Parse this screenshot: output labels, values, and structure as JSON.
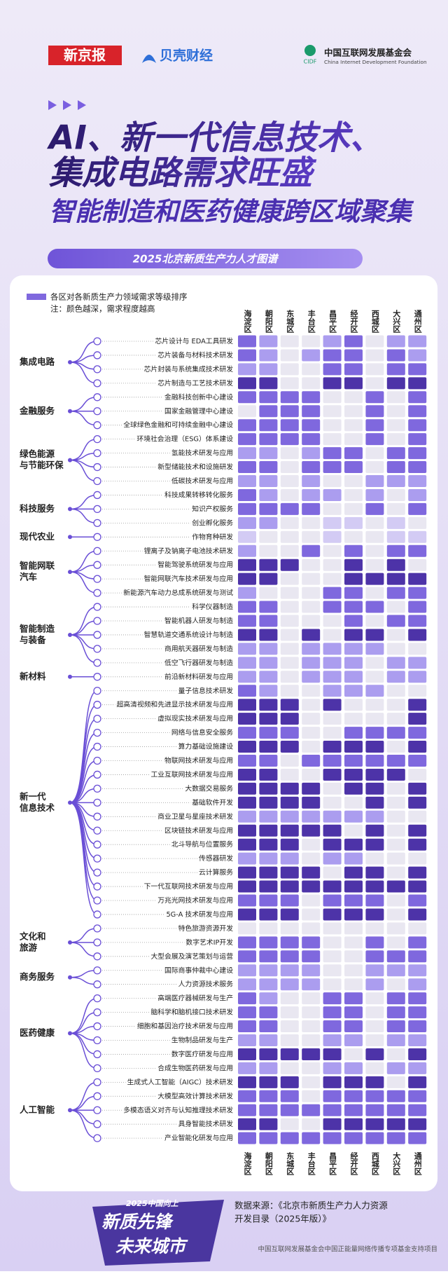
{
  "header": {
    "logo_1": "新京报",
    "logo_2": "贝壳财经",
    "logo_3_abbr": "CIDF",
    "logo_3_name": "中国互联网发展基金会",
    "logo_3_en": "China Internet Development Foundation"
  },
  "title_lines": [
    "AI、新一代信息技术、",
    "集成电路需求旺盛",
    "智能制造和医药健康跨区域聚集"
  ],
  "banner": "2025北京新质生产力人才图谱",
  "legend": {
    "title": "各区对各新质生产力领域需求等级排序",
    "note": "注：颜色越深，需求程度越高"
  },
  "level_colors": [
    "#e9e7f1",
    "#d3cbf4",
    "#ab9def",
    "#7f68de",
    "#4d33a8"
  ],
  "columns": [
    "海淀区",
    "朝阳区",
    "东城区",
    "丰台区",
    "昌平区",
    "经开区",
    "西城区",
    "大兴区",
    "通州区"
  ],
  "groups": [
    {
      "name_lines": [
        "集成电路"
      ],
      "rows": [
        {
          "label": "芯片设计与 EDA工具研发",
          "levels": [
            3,
            2,
            0,
            0,
            2,
            3,
            0,
            2,
            2
          ]
        },
        {
          "label": "芯片装备与材料技术研发",
          "levels": [
            3,
            2,
            0,
            2,
            3,
            3,
            0,
            3,
            2
          ]
        },
        {
          "label": "芯片封装与系统集成技术研发",
          "levels": [
            2,
            2,
            0,
            0,
            3,
            3,
            0,
            3,
            3
          ]
        },
        {
          "label": "芯片制造与工艺技术研发",
          "levels": [
            4,
            4,
            0,
            0,
            4,
            4,
            0,
            4,
            4
          ]
        }
      ]
    },
    {
      "name_lines": [
        "金融服务"
      ],
      "rows": [
        {
          "label": "金融科技创新中心建设",
          "levels": [
            3,
            3,
            3,
            3,
            0,
            0,
            3,
            0,
            3
          ]
        },
        {
          "label": "国家金融管理中心建设",
          "levels": [
            0,
            3,
            3,
            3,
            0,
            0,
            3,
            0,
            3
          ]
        },
        {
          "label": "全球绿色金融和可持续金融中心建设",
          "levels": [
            3,
            3,
            3,
            3,
            0,
            0,
            3,
            0,
            3
          ]
        }
      ]
    },
    {
      "name_lines": [
        "绿色能源",
        "与节能环保"
      ],
      "rows": [
        {
          "label": "环境社会治理（ESG）体系建设",
          "levels": [
            3,
            3,
            3,
            3,
            0,
            0,
            3,
            0,
            3
          ]
        },
        {
          "label": "氢能技术研发与应用",
          "levels": [
            2,
            2,
            0,
            2,
            3,
            3,
            0,
            3,
            3
          ]
        },
        {
          "label": "新型储能技术和设施研发",
          "levels": [
            3,
            3,
            0,
            3,
            3,
            3,
            0,
            3,
            3
          ]
        },
        {
          "label": "低碳技术研发与应用",
          "levels": [
            2,
            2,
            0,
            2,
            0,
            0,
            2,
            2,
            2
          ]
        }
      ]
    },
    {
      "name_lines": [
        "科技服务"
      ],
      "rows": [
        {
          "label": "科技成果转移转化服务",
          "levels": [
            3,
            2,
            0,
            2,
            2,
            0,
            2,
            0,
            2
          ]
        },
        {
          "label": "知识产权服务",
          "levels": [
            3,
            3,
            3,
            3,
            0,
            0,
            3,
            0,
            3
          ]
        },
        {
          "label": "创业孵化服务",
          "levels": [
            2,
            2,
            0,
            0,
            1,
            1,
            0,
            1,
            0
          ]
        }
      ]
    },
    {
      "name_lines": [
        "现代农业"
      ],
      "rows": [
        {
          "label": "作物育种研发",
          "levels": [
            1,
            0,
            0,
            0,
            1,
            0,
            0,
            1,
            1
          ]
        }
      ]
    },
    {
      "name_lines": [
        "智能网联",
        "汽车"
      ],
      "rows": [
        {
          "label": "锂离子及钠离子电池技术研发",
          "levels": [
            2,
            0,
            0,
            3,
            0,
            3,
            0,
            3,
            3
          ]
        },
        {
          "label": "智能驾驶系统研发与应用",
          "levels": [
            4,
            4,
            4,
            0,
            0,
            4,
            0,
            4,
            0
          ]
        },
        {
          "label": "智能网联汽车技术研发与应用",
          "levels": [
            4,
            4,
            0,
            0,
            0,
            4,
            4,
            4,
            4
          ]
        },
        {
          "label": "新能源汽车动力总成系统研发与测试",
          "levels": [
            2,
            0,
            0,
            0,
            3,
            3,
            0,
            3,
            3
          ]
        }
      ]
    },
    {
      "name_lines": [
        "智能制造",
        "与装备"
      ],
      "rows": [
        {
          "label": "科学仪器制造",
          "levels": [
            3,
            3,
            0,
            0,
            3,
            3,
            3,
            0,
            3
          ]
        },
        {
          "label": "智能机器人研发与制造",
          "levels": [
            3,
            3,
            0,
            0,
            0,
            3,
            0,
            3,
            3
          ]
        },
        {
          "label": "智慧轨道交通系统设计与制造",
          "levels": [
            4,
            4,
            0,
            4,
            0,
            4,
            4,
            0,
            4
          ]
        },
        {
          "label": "商用航天器研发与制造",
          "levels": [
            2,
            2,
            0,
            2,
            2,
            2,
            2,
            0,
            0
          ]
        },
        {
          "label": "低空飞行器研发与制造",
          "levels": [
            2,
            2,
            0,
            2,
            2,
            2,
            0,
            2,
            2
          ]
        }
      ]
    },
    {
      "name_lines": [
        "新材料"
      ],
      "rows": [
        {
          "label": "前沿新材料研发与应用",
          "levels": [
            2,
            2,
            0,
            2,
            2,
            2,
            0,
            2,
            2
          ]
        }
      ]
    },
    {
      "name_lines": [
        "新一代",
        "信息技术"
      ],
      "rows": [
        {
          "label": "量子信息技术研发",
          "levels": [
            3,
            2,
            0,
            0,
            2,
            2,
            2,
            0,
            0
          ]
        },
        {
          "label": "超高清视频和先进显示技术研发与应用",
          "levels": [
            4,
            4,
            4,
            0,
            4,
            0,
            0,
            0,
            4
          ]
        },
        {
          "label": "虚拟现实技术研发与应用",
          "levels": [
            4,
            4,
            4,
            0,
            0,
            0,
            0,
            0,
            4
          ]
        },
        {
          "label": "网络与信息安全服务",
          "levels": [
            3,
            3,
            3,
            0,
            0,
            3,
            3,
            3,
            3
          ]
        },
        {
          "label": "算力基础设施建设",
          "levels": [
            4,
            4,
            4,
            0,
            4,
            4,
            4,
            0,
            4
          ]
        },
        {
          "label": "物联网技术研发与应用",
          "levels": [
            3,
            3,
            0,
            3,
            3,
            3,
            3,
            3,
            3
          ]
        },
        {
          "label": "工业互联网技术研发与应用",
          "levels": [
            4,
            4,
            0,
            0,
            4,
            4,
            4,
            4,
            0
          ]
        },
        {
          "label": "大数据交易服务",
          "levels": [
            4,
            4,
            4,
            4,
            0,
            4,
            4,
            0,
            4
          ]
        },
        {
          "label": "基础软件开发",
          "levels": [
            4,
            4,
            4,
            4,
            0,
            0,
            4,
            0,
            4
          ]
        },
        {
          "label": "商业卫星与星座技术研发",
          "levels": [
            2,
            2,
            2,
            2,
            2,
            2,
            2,
            0,
            0
          ]
        },
        {
          "label": "区块链技术研发与应用",
          "levels": [
            4,
            4,
            4,
            4,
            4,
            0,
            4,
            0,
            4
          ]
        },
        {
          "label": "北斗导航与位置服务",
          "levels": [
            4,
            4,
            4,
            0,
            4,
            4,
            4,
            0,
            4
          ]
        },
        {
          "label": "传感器研发",
          "levels": [
            2,
            2,
            2,
            0,
            2,
            2,
            0,
            0,
            0
          ]
        },
        {
          "label": "云计算服务",
          "levels": [
            4,
            4,
            4,
            4,
            0,
            4,
            4,
            0,
            4
          ]
        },
        {
          "label": "下一代互联网技术研发与应用",
          "levels": [
            4,
            4,
            4,
            4,
            4,
            4,
            4,
            4,
            4
          ]
        },
        {
          "label": "万兆光网技术研发与应用",
          "levels": [
            3,
            3,
            3,
            0,
            3,
            3,
            3,
            0,
            3
          ]
        },
        {
          "label": "5G-A 技术研发与应用",
          "levels": [
            4,
            4,
            4,
            0,
            4,
            4,
            4,
            0,
            4
          ]
        }
      ]
    },
    {
      "name_lines": [
        "文化和",
        "旅游"
      ],
      "rows": [
        {
          "label": "特色旅游资源开发",
          "levels": [
            0,
            0,
            0,
            0,
            0,
            0,
            0,
            0,
            0
          ]
        },
        {
          "label": "数字艺术IP开发",
          "levels": [
            3,
            3,
            3,
            3,
            0,
            0,
            3,
            0,
            3
          ]
        },
        {
          "label": "大型会展及演艺策划与运营",
          "levels": [
            3,
            3,
            3,
            3,
            0,
            0,
            3,
            3,
            3
          ]
        }
      ]
    },
    {
      "name_lines": [
        "商务服务"
      ],
      "rows": [
        {
          "label": "国际商事仲裁中心建设",
          "levels": [
            2,
            2,
            2,
            2,
            0,
            0,
            2,
            2,
            2
          ]
        },
        {
          "label": "人力资源技术服务",
          "levels": [
            2,
            2,
            2,
            2,
            0,
            0,
            2,
            0,
            2
          ]
        }
      ]
    },
    {
      "name_lines": [
        "医药健康"
      ],
      "rows": [
        {
          "label": "高端医疗器械研发与生产",
          "levels": [
            3,
            2,
            0,
            0,
            3,
            3,
            0,
            3,
            3
          ]
        },
        {
          "label": "脑科学和脑机接口技术研发",
          "levels": [
            3,
            3,
            0,
            0,
            3,
            3,
            0,
            3,
            3
          ]
        },
        {
          "label": "细胞和基因治疗技术研发与应用",
          "levels": [
            3,
            3,
            0,
            0,
            3,
            3,
            0,
            3,
            3
          ]
        },
        {
          "label": "生物制品研发与生产",
          "levels": [
            2,
            2,
            0,
            0,
            2,
            2,
            0,
            2,
            2
          ]
        },
        {
          "label": "数字医疗研发与应用",
          "levels": [
            4,
            4,
            4,
            4,
            4,
            0,
            4,
            0,
            4
          ]
        },
        {
          "label": "合成生物医药研发与应用",
          "levels": [
            2,
            2,
            0,
            0,
            2,
            2,
            0,
            2,
            2
          ]
        }
      ]
    },
    {
      "name_lines": [
        "人工智能"
      ],
      "rows": [
        {
          "label": "生成式人工智能（AIGC）技术研发",
          "levels": [
            4,
            4,
            4,
            0,
            4,
            4,
            4,
            0,
            4
          ]
        },
        {
          "label": "大模型高效计算技术研发",
          "levels": [
            3,
            3,
            3,
            0,
            3,
            3,
            3,
            3,
            3
          ]
        },
        {
          "label": "多模态语义对齐与认知推理技术研发",
          "levels": [
            3,
            3,
            3,
            3,
            3,
            3,
            3,
            3,
            3
          ]
        },
        {
          "label": "具身智能技术研发",
          "levels": [
            4,
            4,
            0,
            0,
            4,
            4,
            4,
            4,
            4
          ]
        },
        {
          "label": "产业智能化研发与应用",
          "levels": [
            3,
            3,
            3,
            3,
            3,
            3,
            3,
            3,
            3
          ]
        }
      ]
    }
  ],
  "source_lines": [
    "数据来源：《北京市新质生产力人力资源",
    "开发目录（2025年版）》"
  ],
  "badge": {
    "top": "2025中国向上",
    "line1": "新质先锋",
    "line2": "未来城市"
  },
  "footer": "中国互联网发展基金会中国正能量网络传播专项基金支持项目"
}
